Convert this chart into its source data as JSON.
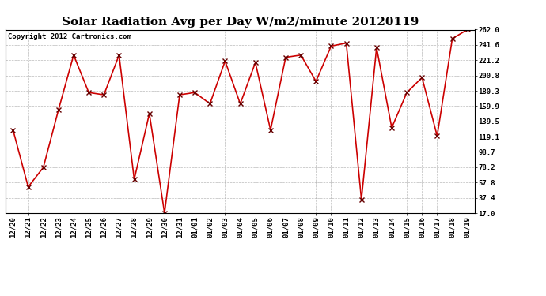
{
  "title": "Solar Radiation Avg per Day W/m2/minute 20120119",
  "copyright": "Copyright 2012 Cartronics.com",
  "labels": [
    "12/20",
    "12/21",
    "12/22",
    "12/23",
    "12/24",
    "12/25",
    "12/26",
    "12/27",
    "12/28",
    "12/29",
    "12/30",
    "12/31",
    "01/01",
    "01/02",
    "01/03",
    "01/04",
    "01/05",
    "01/06",
    "01/07",
    "01/08",
    "01/09",
    "01/10",
    "01/11",
    "01/12",
    "01/13",
    "01/14",
    "01/15",
    "01/16",
    "01/17",
    "01/18",
    "01/19"
  ],
  "values": [
    128.0,
    52.0,
    78.0,
    155.0,
    228.0,
    178.0,
    175.0,
    228.0,
    62.0,
    150.0,
    17.0,
    175.0,
    178.0,
    163.0,
    220.0,
    163.0,
    218.0,
    128.0,
    225.0,
    228.0,
    193.0,
    240.0,
    244.0,
    35.0,
    238.0,
    131.0,
    178.0,
    198.0,
    120.0,
    250.0,
    262.0
  ],
  "line_color": "#cc0000",
  "marker": "x",
  "marker_color": "#660000",
  "bg_color": "#ffffff",
  "plot_bg_color": "#ffffff",
  "grid_color": "#aaaaaa",
  "ylim_min": 17.0,
  "ylim_max": 262.0,
  "yticks": [
    17.0,
    37.4,
    57.8,
    78.2,
    98.7,
    119.1,
    139.5,
    159.9,
    180.3,
    200.8,
    221.2,
    241.6,
    262.0
  ],
  "ytick_labels": [
    "17.0",
    "37.4",
    "57.8",
    "78.2",
    "98.7",
    "119.1",
    "139.5",
    "159.9",
    "180.3",
    "200.8",
    "221.2",
    "241.6",
    "262.0"
  ],
  "title_fontsize": 11,
  "copyright_fontsize": 6.5,
  "tick_fontsize": 6.5,
  "figwidth": 6.9,
  "figheight": 3.75,
  "dpi": 100
}
